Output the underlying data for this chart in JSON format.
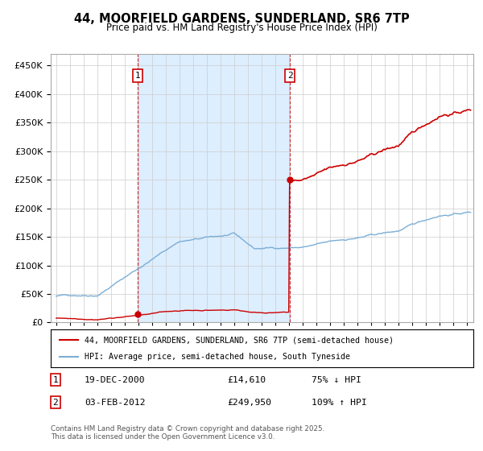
{
  "title": "44, MOORFIELD GARDENS, SUNDERLAND, SR6 7TP",
  "subtitle": "Price paid vs. HM Land Registry's House Price Index (HPI)",
  "legend_line1": "44, MOORFIELD GARDENS, SUNDERLAND, SR6 7TP (semi-detached house)",
  "legend_line2": "HPI: Average price, semi-detached house, South Tyneside",
  "annotation1_date": "19-DEC-2000",
  "annotation1_price": 14610,
  "annotation1_pct": "75% ↓ HPI",
  "annotation2_date": "03-FEB-2012",
  "annotation2_price": 249950,
  "annotation2_pct": "109% ↑ HPI",
  "footnote": "Contains HM Land Registry data © Crown copyright and database right 2025.\nThis data is licensed under the Open Government Licence v3.0.",
  "red_color": "#cc0000",
  "blue_color": "#7aaed6",
  "shade_color": "#ddeeff",
  "background_color": "#ffffff",
  "grid_color": "#cccccc",
  "annotation_box_color": "#cc0000",
  "ylim_max": 470000,
  "purchase1_year": 2000.97,
  "purchase2_year": 2012.09,
  "xlim_min": 1994.6,
  "xlim_max": 2025.5
}
